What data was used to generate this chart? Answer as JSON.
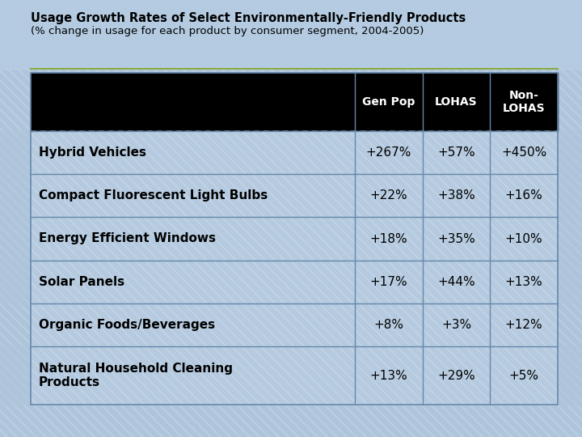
{
  "title_line1": "Usage Growth Rates of Select Environmentally-Friendly Products",
  "title_line2": "(% change in usage for each product by consumer segment, 2004-2005)",
  "col_headers": [
    "Gen Pop",
    "LOHAS",
    "Non-\nLOHAS"
  ],
  "row_labels": [
    "Hybrid Vehicles",
    "Compact Fluorescent Light Bulbs",
    "Energy Efficient Windows",
    "Solar Panels",
    "Organic Foods/Beverages",
    "Natural Household Cleaning\nProducts"
  ],
  "table_data": [
    [
      "+267%",
      "+57%",
      "+450%"
    ],
    [
      "+22%",
      "+38%",
      "+16%"
    ],
    [
      "+18%",
      "+35%",
      "+10%"
    ],
    [
      "+17%",
      "+44%",
      "+13%"
    ],
    [
      "+8%",
      "+3%",
      "+12%"
    ],
    [
      "+13%",
      "+29%",
      "+5%"
    ]
  ],
  "bg_color_light": "#c8ddf0",
  "bg_color_dark": "#a0bcd8",
  "header_bg": "#000000",
  "header_text_color": "#ffffff",
  "row_label_color": "#000000",
  "data_color": "#000000",
  "cell_bg": "#b8cfe8",
  "divider_color": "#7a9ab8",
  "title_color": "#000000",
  "outer_bg": "#b0c8e0",
  "accent_line_color": "#8aaa44",
  "stripe_color1": "#b8d0e8",
  "stripe_color2": "#a8c4de"
}
